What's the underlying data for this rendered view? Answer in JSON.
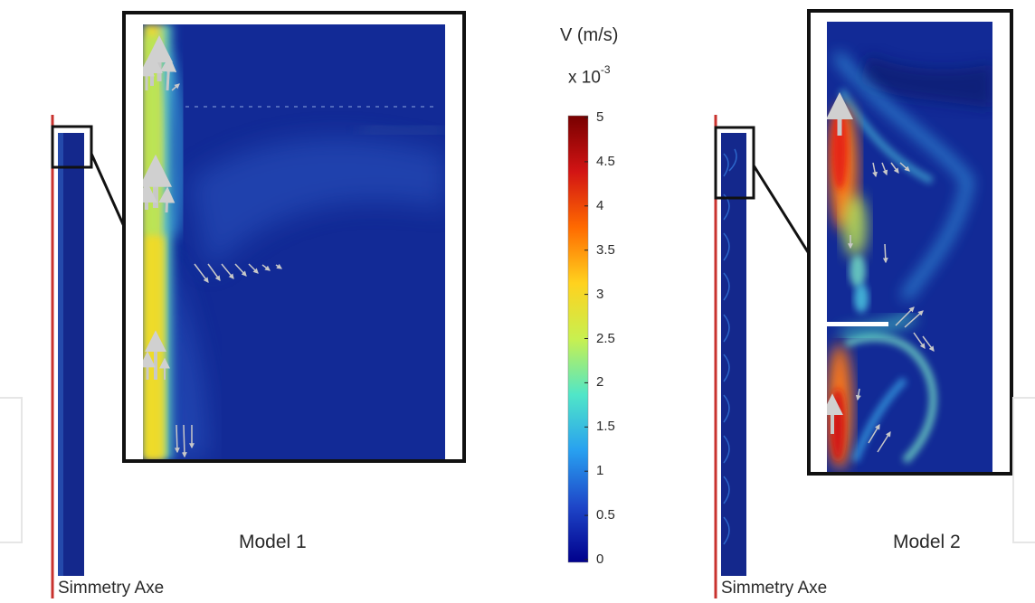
{
  "models": [
    {
      "name": "Model  1",
      "axis_label": "Simmetry Axe"
    },
    {
      "name": "Model  2",
      "axis_label": "Simmetry Axe"
    }
  ],
  "colorbar": {
    "title": "V (m/s)",
    "scale_base": "x 10",
    "scale_exp": "-3",
    "ticks": [
      "5",
      "4.5",
      "4",
      "3.5",
      "3",
      "2.5",
      "2",
      "1.5",
      "1",
      "0.5",
      "0"
    ],
    "colormap": [
      "#00008c",
      "#1e46c8",
      "#28a0f0",
      "#50e6c8",
      "#c8f050",
      "#ffd21e",
      "#ff6a00",
      "#d21414",
      "#780000"
    ]
  }
}
